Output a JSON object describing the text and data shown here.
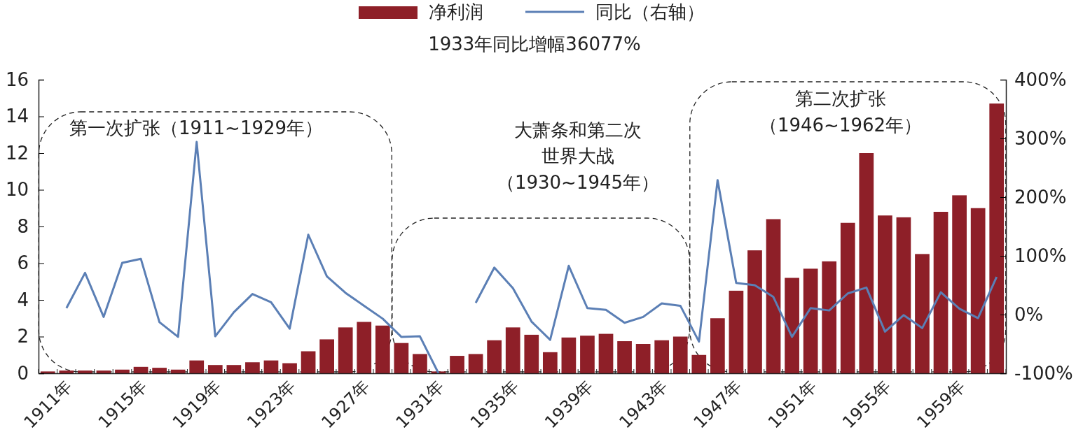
{
  "chart_data": {
    "type": "bar",
    "categories": [
      "1911年",
      null,
      null,
      null,
      "1915年",
      null,
      null,
      null,
      "1919年",
      null,
      null,
      null,
      "1923年",
      null,
      null,
      null,
      "1927年",
      null,
      null,
      null,
      "1931年",
      null,
      null,
      null,
      "1935年",
      null,
      null,
      null,
      "1939年",
      null,
      null,
      null,
      "1943年",
      null,
      null,
      null,
      "1947年",
      null,
      null,
      null,
      "1951年",
      null,
      null,
      null,
      "1955年",
      null,
      null,
      null,
      "1959年",
      null,
      null,
      null
    ],
    "series": [
      {
        "name": "净利润",
        "color": "#8e1f28",
        "values": [
          0.1,
          0.15,
          0.15,
          0.15,
          0.2,
          0.35,
          0.3,
          0.2,
          0.7,
          0.45,
          0.45,
          0.6,
          0.7,
          0.55,
          1.2,
          1.85,
          2.5,
          2.8,
          2.6,
          1.65,
          1.05,
          0.1,
          0.95,
          1.05,
          1.8,
          2.5,
          2.1,
          1.15,
          1.95,
          2.05,
          2.15,
          1.75,
          1.6,
          1.8,
          2.0,
          1.0,
          3.0,
          4.5,
          6.7,
          8.4,
          5.2,
          5.7,
          6.1,
          8.2,
          12.0,
          8.6,
          8.5,
          6.5,
          8.8,
          9.7,
          9.0,
          14.7
        ]
      },
      {
        "name": "同比（右轴）",
        "type": "line",
        "axis": "y2",
        "color": "#5b7fb5",
        "values": [
          null,
          11,
          71,
          -4,
          88,
          95,
          -13,
          -38,
          294,
          -37,
          4,
          35,
          21,
          -24,
          136,
          65,
          37,
          15,
          -7,
          -38,
          -37,
          -100,
          null,
          20,
          80,
          45,
          -12,
          -43,
          83,
          11,
          8,
          -14,
          -4,
          19,
          15,
          -46,
          229,
          54,
          50,
          30,
          -38,
          11,
          7,
          36,
          46,
          -29,
          -1,
          -23,
          38,
          10,
          -6,
          64
        ]
      }
    ],
    "ylim": [
      0,
      16
    ],
    "yticks": [
      0,
      2,
      4,
      6,
      8,
      10,
      12,
      14,
      16
    ],
    "y2lim": [
      -100,
      400
    ],
    "y2ticks": [
      {
        "value": -100,
        "label": "-100%"
      },
      {
        "value": 0,
        "label": "0%"
      },
      {
        "value": 100,
        "label": "100%"
      },
      {
        "value": 200,
        "label": "200%"
      },
      {
        "value": 300,
        "label": "300%"
      },
      {
        "value": 400,
        "label": "400%"
      }
    ],
    "annotations": [
      "1933年同比增幅36077%",
      "第一次扩张（1911~1929年）",
      "大萧条和第二次",
      "世界大战",
      "（1930~1945年）",
      "第二次扩张",
      "（1946~1962年）"
    ],
    "legend": "top",
    "grid": false
  }
}
